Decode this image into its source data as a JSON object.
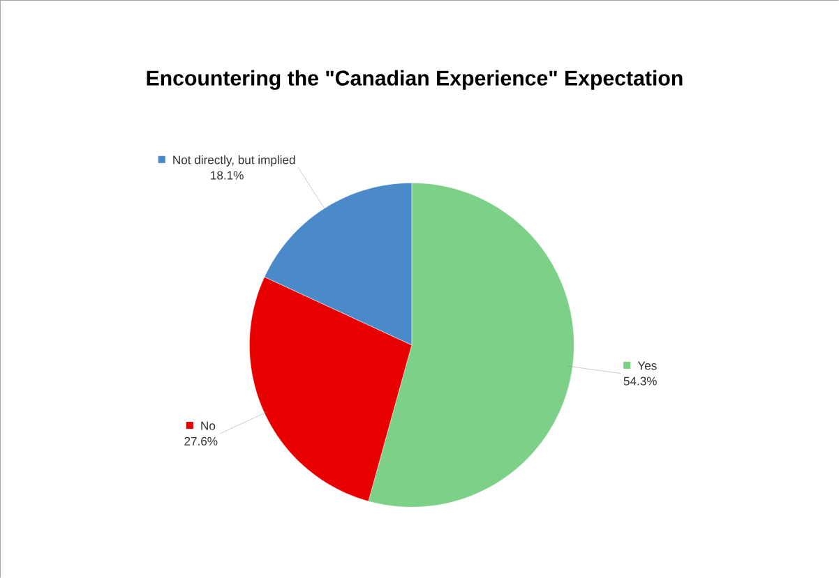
{
  "chart_data": {
    "type": "pie",
    "title": "Encountering the \"Canadian Experience\" Expectation",
    "categories": [
      "Yes",
      "No",
      "Not directly, but implied"
    ],
    "values": [
      54.3,
      27.6,
      18.1
    ],
    "colors": [
      "#7dd087",
      "#e80000",
      "#4a8ac8"
    ],
    "value_labels": [
      "54.3%",
      "27.6%",
      "18.1%"
    ],
    "legend": "right"
  }
}
